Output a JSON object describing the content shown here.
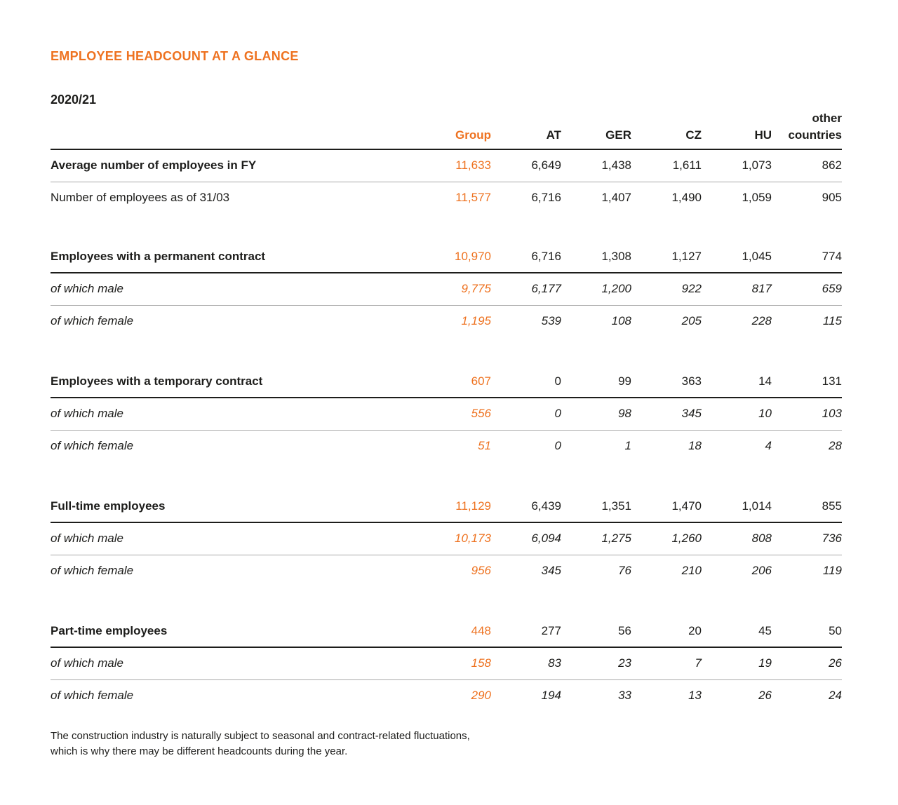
{
  "header": {
    "title": "EMPLOYEE HEADCOUNT AT A GLANCE",
    "period": "2020/21"
  },
  "colors": {
    "accent_orange": "#EE7220",
    "text_black": "#1D1D1B",
    "rule_thin_gray": "#A9A9A9",
    "rule_thick_black": "#1D1D1B",
    "background": "#FFFFFF"
  },
  "table": {
    "columns": [
      "Group",
      "AT",
      "GER",
      "CZ",
      "HU",
      "other countries"
    ],
    "sections": [
      {
        "rows": [
          {
            "label": "Average number of employees in FY",
            "style": "bold",
            "values": [
              "11,633",
              "6,649",
              "1,438",
              "1,611",
              "1,073",
              "862"
            ]
          },
          {
            "label": "Number of employees as of 31/03",
            "style": "regular",
            "values": [
              "11,577",
              "6,716",
              "1,407",
              "1,490",
              "1,059",
              "905"
            ]
          }
        ]
      },
      {
        "rows": [
          {
            "label": "Employees with a permanent contract",
            "style": "bold",
            "values": [
              "10,970",
              "6,716",
              "1,308",
              "1,127",
              "1,045",
              "774"
            ]
          },
          {
            "label": "of which male",
            "style": "italic",
            "values": [
              "9,775",
              "6,177",
              "1,200",
              "922",
              "817",
              "659"
            ]
          },
          {
            "label": "of which female",
            "style": "italic",
            "values": [
              "1,195",
              "539",
              "108",
              "205",
              "228",
              "115"
            ]
          }
        ]
      },
      {
        "rows": [
          {
            "label": "Employees with a temporary contract",
            "style": "bold",
            "values": [
              "607",
              "0",
              "99",
              "363",
              "14",
              "131"
            ]
          },
          {
            "label": "of which male",
            "style": "italic",
            "values": [
              "556",
              "0",
              "98",
              "345",
              "10",
              "103"
            ]
          },
          {
            "label": "of which female",
            "style": "italic",
            "values": [
              "51",
              "0",
              "1",
              "18",
              "4",
              "28"
            ]
          }
        ]
      },
      {
        "rows": [
          {
            "label": "Full-time employees",
            "style": "bold",
            "values": [
              "11,129",
              "6,439",
              "1,351",
              "1,470",
              "1,014",
              "855"
            ]
          },
          {
            "label": "of which male",
            "style": "italic",
            "values": [
              "10,173",
              "6,094",
              "1,275",
              "1,260",
              "808",
              "736"
            ]
          },
          {
            "label": "of which female",
            "style": "italic",
            "values": [
              "956",
              "345",
              "76",
              "210",
              "206",
              "119"
            ]
          }
        ]
      },
      {
        "rows": [
          {
            "label": "Part-time employees",
            "style": "bold",
            "values": [
              "448",
              "277",
              "56",
              "20",
              "45",
              "50"
            ]
          },
          {
            "label": "of which male",
            "style": "italic",
            "values": [
              "158",
              "83",
              "23",
              "7",
              "19",
              "26"
            ]
          },
          {
            "label": "of which female",
            "style": "italic",
            "values": [
              "290",
              "194",
              "33",
              "13",
              "26",
              "24"
            ]
          }
        ]
      }
    ]
  },
  "footnote": {
    "line1": "The construction industry is naturally subject to seasonal and contract-related fluctuations,",
    "line2": "which is why there may be different headcounts during the year."
  }
}
